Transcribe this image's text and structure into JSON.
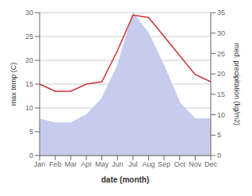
{
  "chart_data": {
    "type": "line",
    "xlabel": "date (month)",
    "ylabel": "max temp (C)",
    "y2label": "med. precipitation (kg/m2)",
    "categories": [
      "Jan",
      "Feb",
      "Mar",
      "Apr",
      "May",
      "Jun",
      "Jul",
      "Aug",
      "Sep",
      "Oct",
      "Nov",
      "Dec"
    ],
    "series": [
      {
        "type": "area",
        "axis": "y2",
        "color": "#c5ccee",
        "values": [
          9,
          8,
          8,
          10,
          14,
          22,
          35,
          30,
          22,
          13,
          9,
          9
        ]
      },
      {
        "type": "line",
        "color": "#cc3333",
        "values": [
          15,
          13.5,
          13.5,
          15,
          15.5,
          22,
          29.5,
          29,
          25,
          21,
          17,
          15.5
        ]
      }
    ],
    "ylim": [
      0,
      30
    ],
    "yticks": [
      0,
      5,
      10,
      15,
      20,
      25,
      30
    ],
    "y2lim": [
      0,
      35
    ],
    "y2ticks": [
      0,
      5,
      10,
      15,
      20,
      25,
      30,
      35
    ],
    "grid": true
  }
}
